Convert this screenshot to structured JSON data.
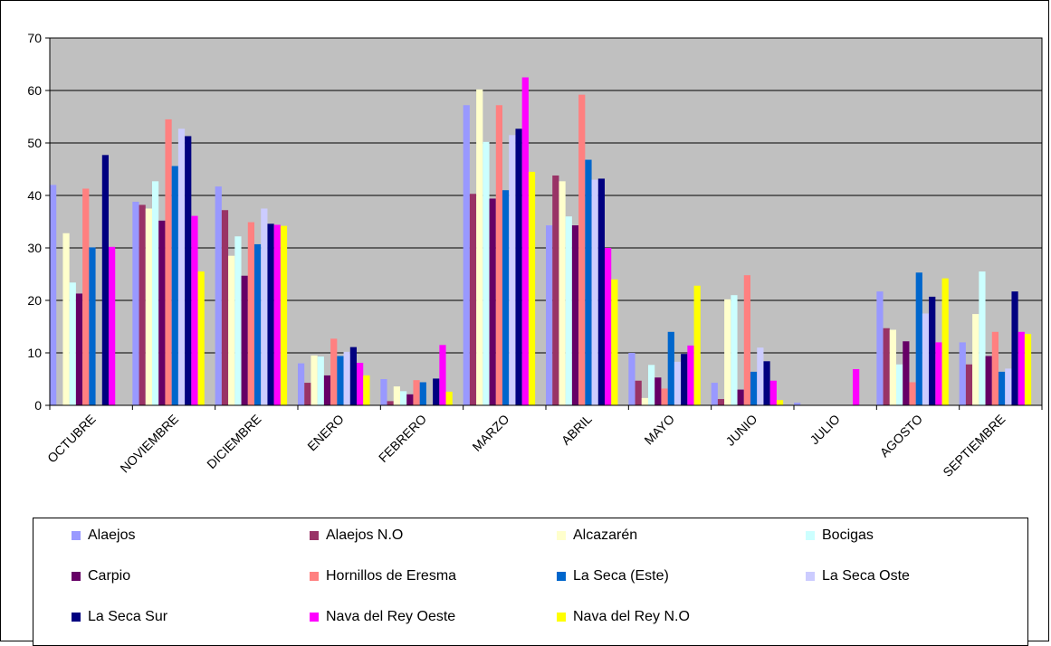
{
  "chart_data": {
    "type": "bar",
    "categories": [
      "OCTUBRE",
      "NOVIEMBRE",
      "DICIEMBRE",
      "ENERO",
      "FEBRERO",
      "MARZO",
      "ABRIL",
      "MAYO",
      "JUNIO",
      "JULIO",
      "AGOSTO",
      "SEPTIEMBRE"
    ],
    "ylim": [
      0,
      70
    ],
    "yticks": [
      0,
      10,
      20,
      30,
      40,
      50,
      60,
      70
    ],
    "grid": true,
    "legend_position": "bottom",
    "series": [
      {
        "name": "Alaejos",
        "color": "#9999FF",
        "values": [
          42,
          38.8,
          41.7,
          8,
          5,
          57.2,
          34.3,
          10,
          4.3,
          0.5,
          21.7,
          12
        ]
      },
      {
        "name": "Alaejos N.O",
        "color": "#993366",
        "values": [
          0,
          38.2,
          37.2,
          4.3,
          0.8,
          40.3,
          43.8,
          4.7,
          1.2,
          0,
          14.7,
          7.8
        ]
      },
      {
        "name": "Alcazarén",
        "color": "#FFFFCC",
        "values": [
          32.8,
          37.5,
          28.5,
          9.5,
          3.6,
          60.2,
          42.7,
          1.4,
          20.2,
          0,
          14.4,
          17.4
        ]
      },
      {
        "name": "Bocigas",
        "color": "#CCFFFF",
        "values": [
          23.4,
          42.7,
          32.2,
          9.3,
          2.7,
          50.2,
          36,
          7.7,
          21,
          0,
          7.8,
          25.5
        ]
      },
      {
        "name": "Carpio",
        "color": "#660066",
        "values": [
          21.3,
          35.2,
          24.7,
          5.7,
          2.1,
          39.4,
          34.3,
          5.3,
          3,
          0,
          12.2,
          9.4
        ]
      },
      {
        "name": "Hornillos de Eresma",
        "color": "#FF8080",
        "values": [
          41.3,
          54.5,
          34.9,
          12.7,
          4.8,
          57.2,
          59.2,
          3.2,
          24.8,
          0,
          4.4,
          14
        ]
      },
      {
        "name": "La Seca (Este)",
        "color": "#0066CC",
        "values": [
          30.1,
          45.6,
          30.7,
          9.4,
          4.4,
          41,
          46.8,
          14,
          6.4,
          0,
          25.3,
          6.4
        ]
      },
      {
        "name": "La Seca Oste",
        "color": "#CCCCFF",
        "values": [
          0,
          52.7,
          37.5,
          10.2,
          0,
          51.5,
          43,
          8.3,
          11,
          0,
          17.5,
          7
        ]
      },
      {
        "name": "La Seca Sur",
        "color": "#000080",
        "values": [
          47.7,
          51.3,
          34.6,
          11.1,
          5.1,
          52.7,
          43.2,
          9.8,
          8.4,
          0,
          20.7,
          21.7
        ]
      },
      {
        "name": "Nava del Rey Oeste",
        "color": "#FF00FF",
        "values": [
          30.2,
          36.1,
          34.4,
          8.1,
          11.5,
          62.5,
          30,
          11.4,
          4.7,
          6.9,
          12,
          14
        ]
      },
      {
        "name": "Nava del Rey N.O",
        "color": "#FFFF00",
        "values": [
          0,
          25.5,
          34.2,
          5.7,
          2.6,
          44.5,
          24,
          22.8,
          1,
          0,
          24.2,
          13.6
        ]
      }
    ]
  }
}
